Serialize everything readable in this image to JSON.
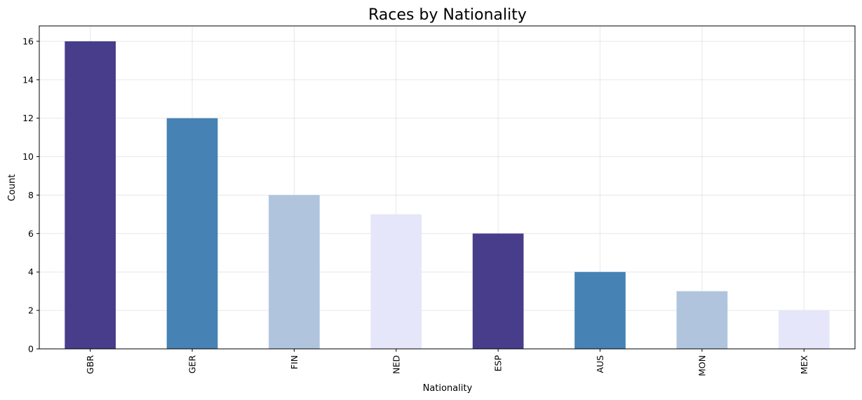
{
  "chart_data": {
    "type": "bar",
    "title": "Races by Nationality",
    "xlabel": "Nationality",
    "ylabel": "Count",
    "categories": [
      "GBR",
      "GER",
      "FIN",
      "NED",
      "ESP",
      "AUS",
      "MON",
      "MEX"
    ],
    "values": [
      16,
      12,
      8,
      7,
      6,
      4,
      3,
      2
    ],
    "colors": [
      "#483d8b",
      "#4682b4",
      "#b0c4de",
      "#e6e6fa",
      "#483d8b",
      "#4682b4",
      "#b0c4de",
      "#e6e6fa"
    ],
    "ylim": [
      0,
      16.8
    ],
    "yticks": [
      0,
      2,
      4,
      6,
      8,
      10,
      12,
      14,
      16
    ],
    "grid": true,
    "legend": "none"
  }
}
